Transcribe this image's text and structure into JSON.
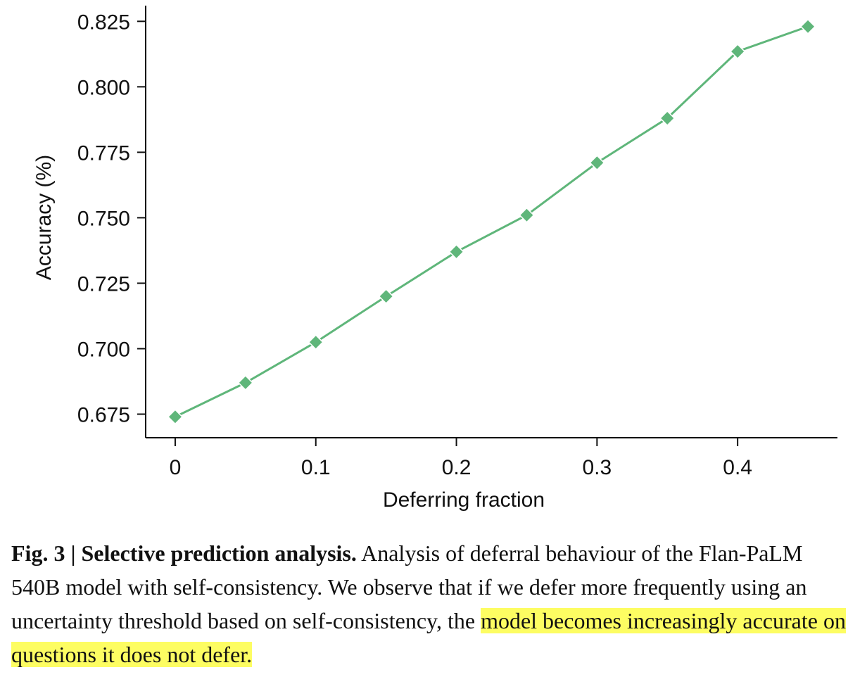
{
  "chart_data": {
    "type": "line",
    "title": "",
    "xlabel": "Deferring fraction",
    "ylabel": "Accuracy (%)",
    "x": [
      0,
      0.05,
      0.1,
      0.15,
      0.2,
      0.25,
      0.3,
      0.35,
      0.4,
      0.45
    ],
    "series": [
      {
        "values": [
          0.674,
          0.687,
          0.7025,
          0.72,
          0.737,
          0.751,
          0.771,
          0.788,
          0.8135,
          0.823
        ],
        "color": "#5fb67a",
        "marker": "diamond"
      }
    ],
    "xticks": [
      0,
      0.1,
      0.2,
      0.3,
      0.4
    ],
    "xtick_labels": [
      "0",
      "0.1",
      "0.2",
      "0.3",
      "0.4"
    ],
    "yticks": [
      0.675,
      0.7,
      0.725,
      0.75,
      0.775,
      0.8,
      0.825
    ],
    "ytick_labels": [
      "0.675",
      "0.700",
      "0.725",
      "0.750",
      "0.775",
      "0.800",
      "0.825"
    ],
    "xlim": [
      -0.021,
      0.471
    ],
    "ylim": [
      0.666,
      0.831
    ],
    "grid": false,
    "legend": "none"
  },
  "caption": {
    "label": "Fig. 3 |",
    "title": "Selective prediction analysis.",
    "text": "Analysis of deferral behaviour of the Flan-PaLM 540B model with self-consistency. We observe that if we defer more frequently using an uncertainty threshold based on self-consistency, the",
    "highlighted": "model becomes increasingly accurate on questions it does not defer."
  }
}
